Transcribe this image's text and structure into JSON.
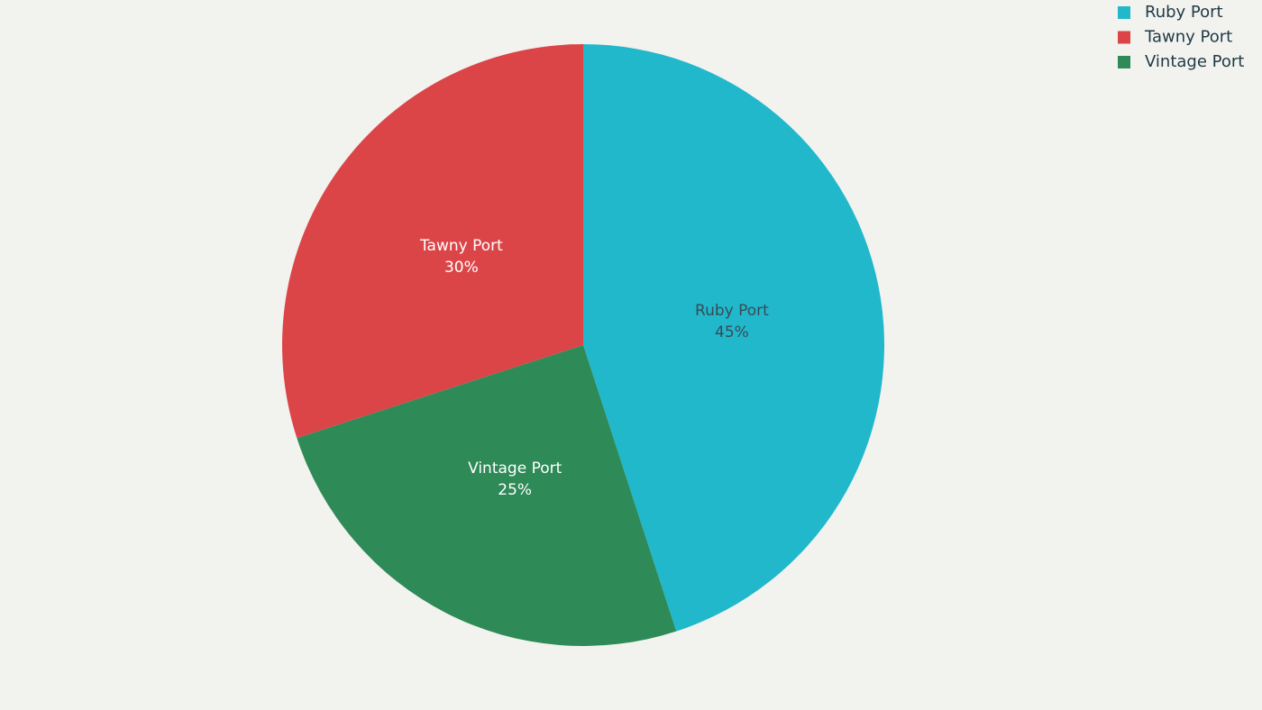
{
  "chart_data": {
    "type": "pie",
    "categories": [
      "Ruby Port",
      "Tawny Port",
      "Vintage Port"
    ],
    "values": [
      45,
      30,
      25
    ],
    "value_labels": [
      "45%",
      "30%",
      "25%"
    ],
    "colors": [
      "#21b8cc",
      "#db4548",
      "#2e8a57"
    ],
    "legend": "top-right"
  }
}
